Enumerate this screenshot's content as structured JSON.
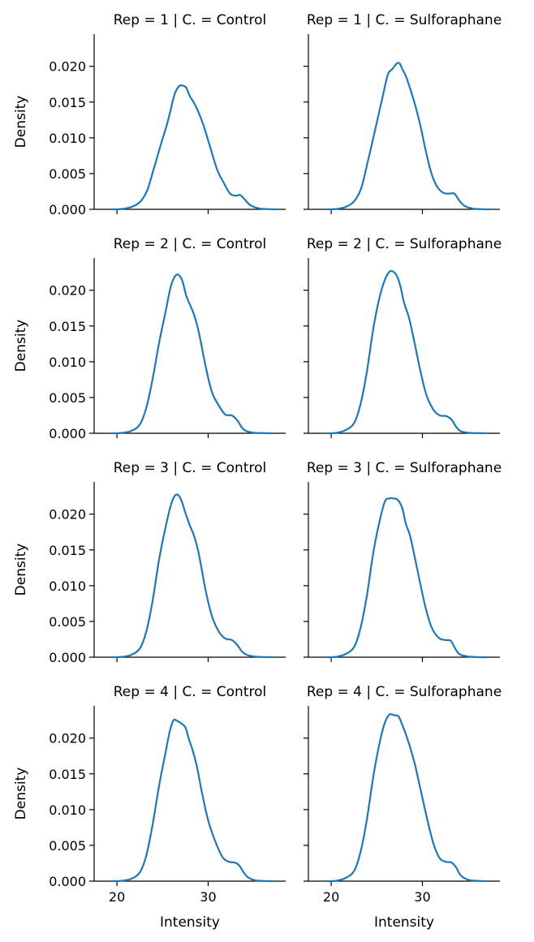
{
  "chart_data": {
    "type": "line",
    "title": "",
    "xlabel": "Intensity",
    "ylabel": "Density",
    "xlim": [
      17.5,
      38.5
    ],
    "ylim": [
      0,
      0.0245
    ],
    "x_ticks": [
      20,
      30
    ],
    "x_tick_labels": [
      "20",
      "30"
    ],
    "y_ticks": [
      0.0,
      0.005,
      0.01,
      0.015,
      0.02
    ],
    "y_tick_labels": [
      "0.000",
      "0.005",
      "0.010",
      "0.015",
      "0.020"
    ],
    "series_color": "#1f77b4",
    "panels": [
      {
        "title": "Rep = 1 | C. = Control",
        "rep": 1,
        "condition": "Control",
        "x": [
          19.5,
          20.5,
          21.5,
          22.5,
          23.3,
          24.0,
          24.8,
          25.6,
          26.3,
          26.8,
          27.2,
          27.6,
          28.0,
          28.4,
          28.9,
          29.5,
          30.2,
          31.0,
          31.8,
          32.4,
          33.0,
          33.5,
          34.0,
          34.6,
          35.5,
          36.5,
          37.5
        ],
        "y": [
          0.0,
          5e-05,
          0.0003,
          0.001,
          0.0026,
          0.0055,
          0.009,
          0.0124,
          0.016,
          0.0172,
          0.0173,
          0.017,
          0.0158,
          0.015,
          0.0137,
          0.0117,
          0.0088,
          0.0055,
          0.0035,
          0.0022,
          0.0019,
          0.002,
          0.0014,
          0.0006,
          0.00015,
          3e-05,
          0.0
        ]
      },
      {
        "title": "Rep = 1 | C. = Sulforaphane",
        "rep": 1,
        "condition": "Sulforaphane",
        "x": [
          19.5,
          20.5,
          21.5,
          22.5,
          23.3,
          24.0,
          24.8,
          25.6,
          26.2,
          26.7,
          27.2,
          27.5,
          27.8,
          28.2,
          28.7,
          29.2,
          29.8,
          30.4,
          31.0,
          31.6,
          32.3,
          32.9,
          33.5,
          34.0,
          34.6,
          35.5,
          36.5,
          37.5
        ],
        "y": [
          0.0,
          5e-05,
          0.0003,
          0.0011,
          0.003,
          0.0066,
          0.011,
          0.0155,
          0.0188,
          0.0196,
          0.0204,
          0.0204,
          0.0196,
          0.0186,
          0.0167,
          0.0146,
          0.0116,
          0.008,
          0.005,
          0.0032,
          0.0023,
          0.0022,
          0.0022,
          0.0013,
          0.0005,
          0.0001,
          2e-05,
          0.0
        ]
      },
      {
        "title": "Rep = 2 | C. = Control",
        "rep": 2,
        "condition": "Control",
        "x": [
          19.5,
          20.5,
          21.5,
          22.5,
          23.2,
          23.9,
          24.6,
          25.3,
          25.9,
          26.4,
          26.8,
          27.2,
          27.6,
          28.0,
          28.5,
          29.0,
          29.7,
          30.4,
          31.2,
          31.9,
          32.6,
          33.2,
          33.7,
          34.2,
          35.0,
          36.0,
          37.0
        ],
        "y": [
          0.0,
          5e-05,
          0.0003,
          0.0012,
          0.0035,
          0.0075,
          0.0125,
          0.0168,
          0.0205,
          0.022,
          0.0221,
          0.0212,
          0.0192,
          0.018,
          0.0164,
          0.014,
          0.0095,
          0.0058,
          0.0038,
          0.0026,
          0.0025,
          0.0018,
          0.0008,
          0.0003,
          8e-05,
          2e-05,
          0.0
        ]
      },
      {
        "title": "Rep = 2 | C. = Sulforaphane",
        "rep": 2,
        "condition": "Sulforaphane",
        "x": [
          19.5,
          20.5,
          21.5,
          22.5,
          23.2,
          23.9,
          24.6,
          25.3,
          25.9,
          26.4,
          26.8,
          27.2,
          27.6,
          28.0,
          28.5,
          29.0,
          29.7,
          30.4,
          31.2,
          31.9,
          32.6,
          33.2,
          33.7,
          34.2,
          35.0,
          36.0,
          37.0
        ],
        "y": [
          0.0,
          5e-05,
          0.0004,
          0.0014,
          0.004,
          0.0085,
          0.0145,
          0.019,
          0.0215,
          0.0226,
          0.0226,
          0.022,
          0.0205,
          0.0182,
          0.0163,
          0.0135,
          0.0092,
          0.0055,
          0.0033,
          0.0025,
          0.0024,
          0.0019,
          0.0009,
          0.0003,
          8e-05,
          2e-05,
          0.0
        ]
      },
      {
        "title": "Rep = 3 | C. = Control",
        "rep": 3,
        "condition": "Control",
        "x": [
          19.5,
          20.5,
          21.5,
          22.5,
          23.2,
          23.9,
          24.6,
          25.3,
          25.9,
          26.3,
          26.7,
          27.1,
          27.5,
          28.0,
          28.5,
          29.0,
          29.7,
          30.4,
          31.2,
          31.9,
          32.6,
          33.2,
          33.7,
          34.3,
          35.2,
          36.2,
          37.2
        ],
        "y": [
          0.0,
          5e-05,
          0.0003,
          0.0012,
          0.0035,
          0.0078,
          0.0135,
          0.018,
          0.0212,
          0.0225,
          0.0227,
          0.0218,
          0.0202,
          0.0184,
          0.0168,
          0.0143,
          0.0095,
          0.0058,
          0.0035,
          0.0026,
          0.0024,
          0.0017,
          0.0008,
          0.0003,
          8e-05,
          2e-05,
          0.0
        ]
      },
      {
        "title": "Rep = 3 | C. = Sulforaphane",
        "rep": 3,
        "condition": "Sulforaphane",
        "x": [
          19.5,
          20.5,
          21.5,
          22.5,
          23.2,
          23.9,
          24.6,
          25.3,
          25.9,
          26.4,
          26.8,
          27.3,
          27.8,
          28.2,
          28.6,
          29.0,
          29.6,
          30.3,
          31.0,
          31.8,
          32.5,
          33.1,
          33.6,
          34.1,
          35.0,
          36.0,
          37.0
        ],
        "y": [
          0.0,
          5e-05,
          0.0004,
          0.0014,
          0.004,
          0.0085,
          0.0145,
          0.019,
          0.0218,
          0.0222,
          0.0222,
          0.022,
          0.0208,
          0.0186,
          0.0172,
          0.015,
          0.0113,
          0.0072,
          0.0042,
          0.0027,
          0.0024,
          0.0023,
          0.0012,
          0.0004,
          0.0001,
          2e-05,
          0.0
        ]
      },
      {
        "title": "Rep = 4 | C. = Control",
        "rep": 4,
        "condition": "Control",
        "x": [
          19.5,
          20.5,
          21.5,
          22.5,
          23.2,
          23.9,
          24.6,
          25.3,
          25.8,
          26.2,
          26.6,
          27.0,
          27.5,
          27.9,
          28.3,
          28.8,
          29.3,
          30.0,
          30.8,
          31.6,
          32.3,
          32.9,
          33.4,
          33.9,
          34.4,
          35.2,
          36.2,
          37.2
        ],
        "y": [
          0.0,
          5e-05,
          0.0003,
          0.0012,
          0.0035,
          0.0078,
          0.0132,
          0.0178,
          0.021,
          0.0225,
          0.0224,
          0.0221,
          0.0215,
          0.0198,
          0.0183,
          0.0158,
          0.0125,
          0.0085,
          0.0055,
          0.0033,
          0.0027,
          0.0026,
          0.0022,
          0.0012,
          0.0005,
          0.0001,
          2e-05,
          0.0
        ]
      },
      {
        "title": "Rep = 4 | C. = Sulforaphane",
        "rep": 4,
        "condition": "Sulforaphane",
        "x": [
          19.5,
          20.5,
          21.5,
          22.5,
          23.2,
          23.9,
          24.6,
          25.3,
          25.9,
          26.4,
          26.9,
          27.4,
          27.8,
          28.2,
          28.7,
          29.2,
          29.8,
          30.5,
          31.2,
          31.9,
          32.6,
          33.2,
          33.7,
          34.2,
          35.0,
          36.0,
          37.0
        ],
        "y": [
          0.0,
          5e-05,
          0.0004,
          0.0014,
          0.004,
          0.0085,
          0.0145,
          0.0193,
          0.0222,
          0.0233,
          0.0232,
          0.023,
          0.0218,
          0.0205,
          0.0185,
          0.0162,
          0.0128,
          0.0088,
          0.0053,
          0.0032,
          0.0027,
          0.0026,
          0.0019,
          0.0008,
          0.0002,
          4e-05,
          0.0
        ]
      }
    ]
  }
}
